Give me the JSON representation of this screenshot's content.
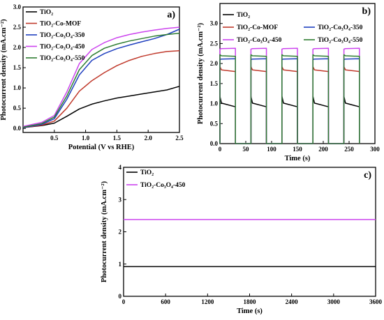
{
  "chart_data": [
    {
      "panel": "a)",
      "type": "line",
      "xlabel": "Potential (V vs RHE)",
      "ylabel": "Photocurrent density (mA.cm⁻²)",
      "xlim": [
        0.0,
        2.5
      ],
      "ylim": [
        -0.1,
        3.0
      ],
      "xticks": [
        "0.5",
        "1.0",
        "1.5",
        "2.0",
        "2.5"
      ],
      "yticks": [
        "0.0",
        "0.5",
        "1.0",
        "1.5",
        "2.0",
        "2.5",
        "3.0"
      ],
      "legend_position": "top-left",
      "series": [
        {
          "name": "TiO₂",
          "color": "#000000",
          "x": [
            0.0,
            0.3,
            0.5,
            0.7,
            0.9,
            1.1,
            1.3,
            1.5,
            1.7,
            1.9,
            2.1,
            2.3,
            2.5
          ],
          "y": [
            0.02,
            0.07,
            0.13,
            0.3,
            0.48,
            0.6,
            0.68,
            0.75,
            0.8,
            0.85,
            0.9,
            0.95,
            1.04
          ]
        },
        {
          "name": "TiO₂-Co-MOF",
          "color": "#c0392b",
          "x": [
            0.0,
            0.3,
            0.5,
            0.7,
            0.9,
            1.1,
            1.3,
            1.5,
            1.7,
            1.9,
            2.1,
            2.3,
            2.5
          ],
          "y": [
            0.02,
            0.08,
            0.18,
            0.5,
            0.92,
            1.18,
            1.38,
            1.55,
            1.68,
            1.78,
            1.85,
            1.9,
            1.92
          ]
        },
        {
          "name": "TiO₂-Co₃O₄-350",
          "color": "#1f3fbf",
          "x": [
            0.0,
            0.3,
            0.5,
            0.7,
            0.9,
            1.1,
            1.3,
            1.5,
            1.7,
            1.9,
            2.1,
            2.3,
            2.5
          ],
          "y": [
            0.02,
            0.1,
            0.24,
            0.72,
            1.32,
            1.68,
            1.85,
            1.97,
            2.06,
            2.14,
            2.22,
            2.32,
            2.45
          ]
        },
        {
          "name": "TiO₂-Co₃O₄-450",
          "color": "#cc44ee",
          "x": [
            0.0,
            0.3,
            0.5,
            0.7,
            0.9,
            1.1,
            1.3,
            1.5,
            1.7,
            1.9,
            2.1,
            2.3,
            2.5
          ],
          "y": [
            0.05,
            0.15,
            0.32,
            0.9,
            1.6,
            1.95,
            2.12,
            2.24,
            2.32,
            2.38,
            2.43,
            2.47,
            2.5
          ]
        },
        {
          "name": "TiO₂-Co₃O₄-550",
          "color": "#2e7d32",
          "x": [
            0.0,
            0.3,
            0.5,
            0.7,
            0.9,
            1.1,
            1.3,
            1.5,
            1.7,
            1.9,
            2.1,
            2.3,
            2.5
          ],
          "y": [
            0.03,
            0.12,
            0.28,
            0.8,
            1.45,
            1.8,
            1.98,
            2.08,
            2.16,
            2.22,
            2.28,
            2.32,
            2.35
          ]
        }
      ]
    },
    {
      "panel": "b)",
      "type": "line",
      "xlabel": "Time (s)",
      "ylabel": "Photocurrent density (mA.cm⁻²)",
      "xlim": [
        0,
        300
      ],
      "ylim": [
        0,
        3.5
      ],
      "xticks": [
        "0",
        "50",
        "100",
        "150",
        "200",
        "250",
        "300"
      ],
      "yticks": [
        "0.0",
        "0.5",
        "1.0",
        "1.5",
        "2.0",
        "2.5",
        "3.0"
      ],
      "light_on_intervals": [
        [
          0,
          30
        ],
        [
          60,
          90
        ],
        [
          120,
          150
        ],
        [
          180,
          210
        ],
        [
          240,
          270
        ]
      ],
      "legend_position": "top",
      "series": [
        {
          "name": "TiO₂",
          "color": "#000000",
          "on_start": 1.18,
          "on_level": 0.92,
          "off_level": 0.0
        },
        {
          "name": "TiO₂-Co-MOF",
          "color": "#c0392b",
          "on_start": 1.92,
          "on_level": 1.8,
          "off_level": 0.0
        },
        {
          "name": "TiO₂-Co₃O₄-350",
          "color": "#1f3fbf",
          "on_start": 2.1,
          "on_level": 2.12,
          "off_level": 0.0
        },
        {
          "name": "TiO₂-Co₃O₄-450",
          "color": "#cc44ee",
          "on_start": 2.36,
          "on_level": 2.38,
          "off_level": 0.0
        },
        {
          "name": "TiO₂-Co₃O₄-550",
          "color": "#2e7d32",
          "on_start": 2.22,
          "on_level": 2.18,
          "off_level": 0.0
        }
      ]
    },
    {
      "panel": "c)",
      "type": "line",
      "xlabel": "Time (s)",
      "ylabel": "Photocurrent density (mA.cm⁻²)",
      "xlim": [
        0,
        3600
      ],
      "ylim": [
        0,
        4
      ],
      "xticks": [
        "0",
        "600",
        "1200",
        "1800",
        "2400",
        "3000",
        "3600"
      ],
      "yticks": [
        "0",
        "1",
        "2",
        "3",
        "4"
      ],
      "legend_position": "top-left",
      "series": [
        {
          "name": "TiO₂",
          "color": "#000000",
          "x": [
            0,
            3600
          ],
          "y": [
            0.92,
            0.92
          ]
        },
        {
          "name": "TiO₂-Co₃O₄-450",
          "color": "#cc44ee",
          "x": [
            0,
            3600
          ],
          "y": [
            2.38,
            2.38
          ]
        }
      ]
    }
  ]
}
